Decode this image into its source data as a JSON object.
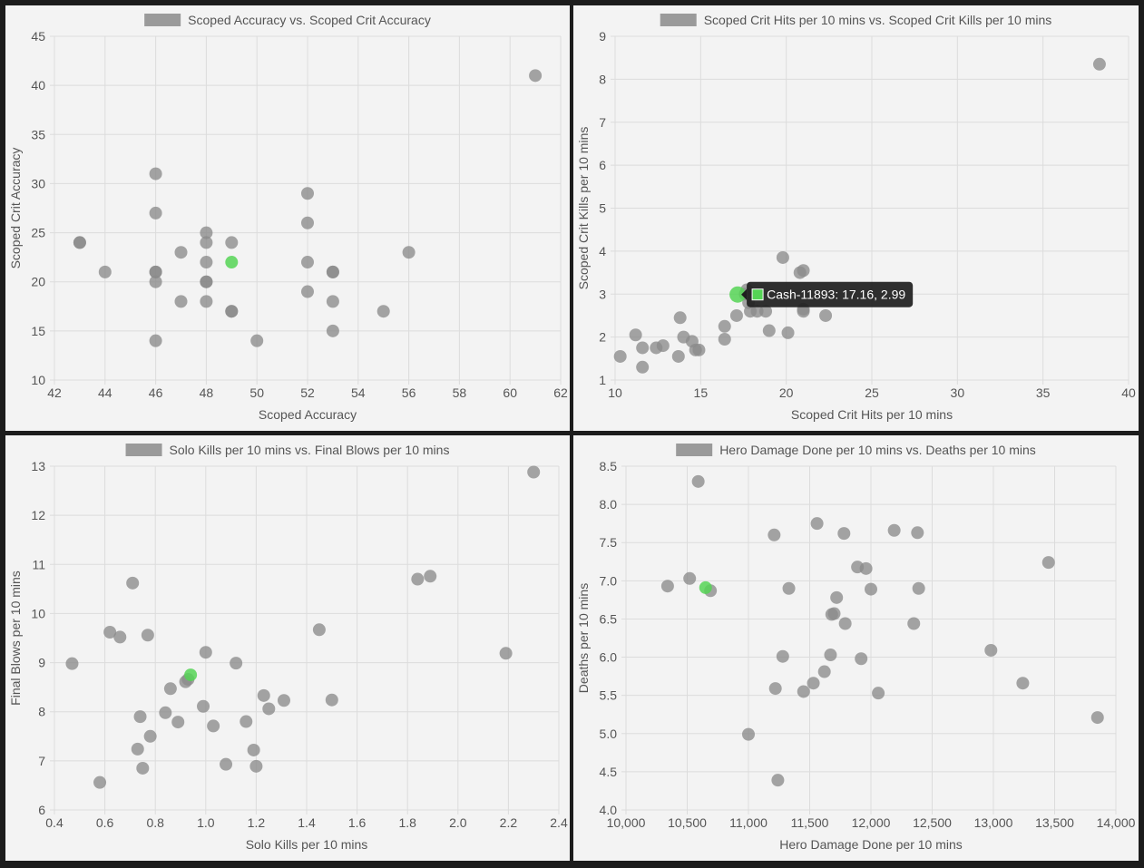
{
  "colors": {
    "point": "#8a8a8a",
    "highlight": "#55d455",
    "legend_swatch": "#9a9a9a",
    "grid": "#dcdcdc",
    "tooltip_bg": "#1e1e1e"
  },
  "chart_data": [
    {
      "type": "scatter",
      "title": "Scoped Accuracy vs. Scoped Crit Accuracy",
      "legend": "Scoped Accuracy vs. Scoped Crit Accuracy",
      "legend_position": "top",
      "grid": true,
      "xlabel": "Scoped Accuracy",
      "ylabel": "Scoped Crit Accuracy",
      "xlim": [
        42,
        62
      ],
      "ylim": [
        10,
        45
      ],
      "xticks": [
        "42",
        "44",
        "46",
        "48",
        "50",
        "52",
        "54",
        "56",
        "58",
        "60",
        "62"
      ],
      "yticks": [
        "10",
        "15",
        "20",
        "25",
        "30",
        "35",
        "40",
        "45"
      ],
      "points": [
        {
          "x": 43,
          "y": 24
        },
        {
          "x": 43,
          "y": 24
        },
        {
          "x": 44,
          "y": 21
        },
        {
          "x": 46,
          "y": 31
        },
        {
          "x": 46,
          "y": 27
        },
        {
          "x": 46,
          "y": 21
        },
        {
          "x": 46,
          "y": 21
        },
        {
          "x": 46,
          "y": 20
        },
        {
          "x": 46,
          "y": 14
        },
        {
          "x": 47,
          "y": 23
        },
        {
          "x": 47,
          "y": 18
        },
        {
          "x": 48,
          "y": 25
        },
        {
          "x": 48,
          "y": 24
        },
        {
          "x": 48,
          "y": 22
        },
        {
          "x": 48,
          "y": 20
        },
        {
          "x": 48,
          "y": 20
        },
        {
          "x": 48,
          "y": 18
        },
        {
          "x": 49,
          "y": 24
        },
        {
          "x": 49,
          "y": 17
        },
        {
          "x": 49,
          "y": 17
        },
        {
          "x": 50,
          "y": 14
        },
        {
          "x": 52,
          "y": 29
        },
        {
          "x": 52,
          "y": 26
        },
        {
          "x": 52,
          "y": 22
        },
        {
          "x": 52,
          "y": 19
        },
        {
          "x": 53,
          "y": 21
        },
        {
          "x": 53,
          "y": 21
        },
        {
          "x": 53,
          "y": 18
        },
        {
          "x": 53,
          "y": 15
        },
        {
          "x": 55,
          "y": 17
        },
        {
          "x": 56,
          "y": 23
        },
        {
          "x": 61,
          "y": 41
        }
      ],
      "highlight": {
        "x": 49,
        "y": 22
      }
    },
    {
      "type": "scatter",
      "title": "Scoped Crit Hits per 10 mins vs. Scoped Crit Kills per 10 mins",
      "legend": "Scoped Crit Hits per 10 mins vs. Scoped Crit Kills per 10 mins",
      "legend_position": "top",
      "grid": true,
      "xlabel": "Scoped Crit Hits per 10 mins",
      "ylabel": "Scoped Crit Kills per 10 mins",
      "xlim": [
        10,
        40
      ],
      "ylim": [
        1,
        9
      ],
      "xticks": [
        "10",
        "15",
        "20",
        "25",
        "30",
        "35",
        "40"
      ],
      "yticks": [
        "1",
        "2",
        "3",
        "4",
        "5",
        "6",
        "7",
        "8",
        "9"
      ],
      "points": [
        {
          "x": 10.3,
          "y": 1.55
        },
        {
          "x": 11.2,
          "y": 2.05
        },
        {
          "x": 11.6,
          "y": 1.3
        },
        {
          "x": 11.6,
          "y": 1.75
        },
        {
          "x": 12.4,
          "y": 1.75
        },
        {
          "x": 12.8,
          "y": 1.8
        },
        {
          "x": 13.7,
          "y": 1.55
        },
        {
          "x": 13.8,
          "y": 2.45
        },
        {
          "x": 14.0,
          "y": 2.0
        },
        {
          "x": 14.5,
          "y": 1.9
        },
        {
          "x": 14.7,
          "y": 1.7
        },
        {
          "x": 14.9,
          "y": 1.7
        },
        {
          "x": 16.4,
          "y": 1.95
        },
        {
          "x": 16.4,
          "y": 2.25
        },
        {
          "x": 17.1,
          "y": 2.5
        },
        {
          "x": 17.6,
          "y": 3.0
        },
        {
          "x": 17.7,
          "y": 3.1
        },
        {
          "x": 17.8,
          "y": 2.8
        },
        {
          "x": 17.9,
          "y": 2.6
        },
        {
          "x": 18.3,
          "y": 2.6
        },
        {
          "x": 18.8,
          "y": 2.6
        },
        {
          "x": 19.0,
          "y": 2.15
        },
        {
          "x": 19.8,
          "y": 3.85
        },
        {
          "x": 20.1,
          "y": 2.1
        },
        {
          "x": 20.8,
          "y": 3.5
        },
        {
          "x": 21.0,
          "y": 3.55
        },
        {
          "x": 21.0,
          "y": 2.65
        },
        {
          "x": 21.0,
          "y": 2.6
        },
        {
          "x": 22.3,
          "y": 2.5
        },
        {
          "x": 38.3,
          "y": 8.35
        }
      ],
      "highlight": {
        "x": 17.16,
        "y": 2.99
      },
      "tooltip": "Cash-11893: 17.16, 2.99"
    },
    {
      "type": "scatter",
      "title": "Solo Kills per 10 mins vs. Final Blows per 10 mins",
      "legend": "Solo Kills per 10 mins vs. Final Blows per 10 mins",
      "legend_position": "top",
      "grid": true,
      "xlabel": "Solo Kills per 10 mins",
      "ylabel": "Final Blows per 10 mins",
      "xlim": [
        0.4,
        2.4
      ],
      "ylim": [
        6,
        13
      ],
      "xticks": [
        "0.4",
        "0.6",
        "0.8",
        "1.0",
        "1.2",
        "1.4",
        "1.6",
        "1.8",
        "2.0",
        "2.2",
        "2.4"
      ],
      "yticks": [
        "6",
        "7",
        "8",
        "9",
        "10",
        "11",
        "12",
        "13"
      ],
      "points": [
        {
          "x": 0.47,
          "y": 8.98
        },
        {
          "x": 0.58,
          "y": 6.56
        },
        {
          "x": 0.62,
          "y": 9.62
        },
        {
          "x": 0.66,
          "y": 9.52
        },
        {
          "x": 0.71,
          "y": 10.62
        },
        {
          "x": 0.73,
          "y": 7.24
        },
        {
          "x": 0.74,
          "y": 7.9
        },
        {
          "x": 0.75,
          "y": 6.85
        },
        {
          "x": 0.77,
          "y": 9.56
        },
        {
          "x": 0.78,
          "y": 7.5
        },
        {
          "x": 0.84,
          "y": 7.98
        },
        {
          "x": 0.86,
          "y": 8.47
        },
        {
          "x": 0.89,
          "y": 7.79
        },
        {
          "x": 0.92,
          "y": 8.61
        },
        {
          "x": 0.93,
          "y": 8.66
        },
        {
          "x": 0.99,
          "y": 8.11
        },
        {
          "x": 1.0,
          "y": 9.21
        },
        {
          "x": 1.03,
          "y": 7.71
        },
        {
          "x": 1.08,
          "y": 6.93
        },
        {
          "x": 1.12,
          "y": 8.99
        },
        {
          "x": 1.16,
          "y": 7.8
        },
        {
          "x": 1.19,
          "y": 7.22
        },
        {
          "x": 1.2,
          "y": 6.89
        },
        {
          "x": 1.23,
          "y": 8.33
        },
        {
          "x": 1.25,
          "y": 8.06
        },
        {
          "x": 1.31,
          "y": 8.23
        },
        {
          "x": 1.45,
          "y": 9.67
        },
        {
          "x": 1.5,
          "y": 8.24
        },
        {
          "x": 1.84,
          "y": 10.7
        },
        {
          "x": 1.89,
          "y": 10.76
        },
        {
          "x": 2.19,
          "y": 9.19
        },
        {
          "x": 2.3,
          "y": 12.88
        }
      ],
      "highlight": {
        "x": 0.94,
        "y": 8.75
      }
    },
    {
      "type": "scatter",
      "title": "Hero Damage Done per 10 mins vs. Deaths per 10 mins",
      "legend": "Hero Damage Done per 10 mins vs. Deaths per 10 mins",
      "legend_position": "top",
      "grid": true,
      "xlabel": "Hero Damage Done per 10 mins",
      "ylabel": "Deaths per 10 mins",
      "xlim": [
        10000,
        14000
      ],
      "ylim": [
        4.0,
        8.5
      ],
      "xticks": [
        "10,000",
        "10,500",
        "11,000",
        "11,500",
        "12,000",
        "12,500",
        "13,000",
        "13,500",
        "14,000"
      ],
      "yticks": [
        "4.0",
        "4.5",
        "5.0",
        "5.5",
        "6.0",
        "6.5",
        "7.0",
        "7.5",
        "8.0",
        "8.5"
      ],
      "points": [
        {
          "x": 10340,
          "y": 6.93
        },
        {
          "x": 10520,
          "y": 7.03
        },
        {
          "x": 10590,
          "y": 8.3
        },
        {
          "x": 10690,
          "y": 6.87
        },
        {
          "x": 11000,
          "y": 4.99
        },
        {
          "x": 11210,
          "y": 7.6
        },
        {
          "x": 11220,
          "y": 5.59
        },
        {
          "x": 11240,
          "y": 4.39
        },
        {
          "x": 11280,
          "y": 6.01
        },
        {
          "x": 11330,
          "y": 6.9
        },
        {
          "x": 11450,
          "y": 5.55
        },
        {
          "x": 11530,
          "y": 5.66
        },
        {
          "x": 11560,
          "y": 7.75
        },
        {
          "x": 11620,
          "y": 5.81
        },
        {
          "x": 11670,
          "y": 6.03
        },
        {
          "x": 11680,
          "y": 6.56
        },
        {
          "x": 11700,
          "y": 6.57
        },
        {
          "x": 11720,
          "y": 6.78
        },
        {
          "x": 11780,
          "y": 7.62
        },
        {
          "x": 11790,
          "y": 6.44
        },
        {
          "x": 11890,
          "y": 7.18
        },
        {
          "x": 11920,
          "y": 5.98
        },
        {
          "x": 11960,
          "y": 7.16
        },
        {
          "x": 12000,
          "y": 6.89
        },
        {
          "x": 12060,
          "y": 5.53
        },
        {
          "x": 12190,
          "y": 7.66
        },
        {
          "x": 12350,
          "y": 6.44
        },
        {
          "x": 12380,
          "y": 7.63
        },
        {
          "x": 12390,
          "y": 6.9
        },
        {
          "x": 12980,
          "y": 6.09
        },
        {
          "x": 13240,
          "y": 5.66
        },
        {
          "x": 13450,
          "y": 7.24
        },
        {
          "x": 13850,
          "y": 5.21
        }
      ],
      "highlight": {
        "x": 10650,
        "y": 6.91
      }
    }
  ]
}
